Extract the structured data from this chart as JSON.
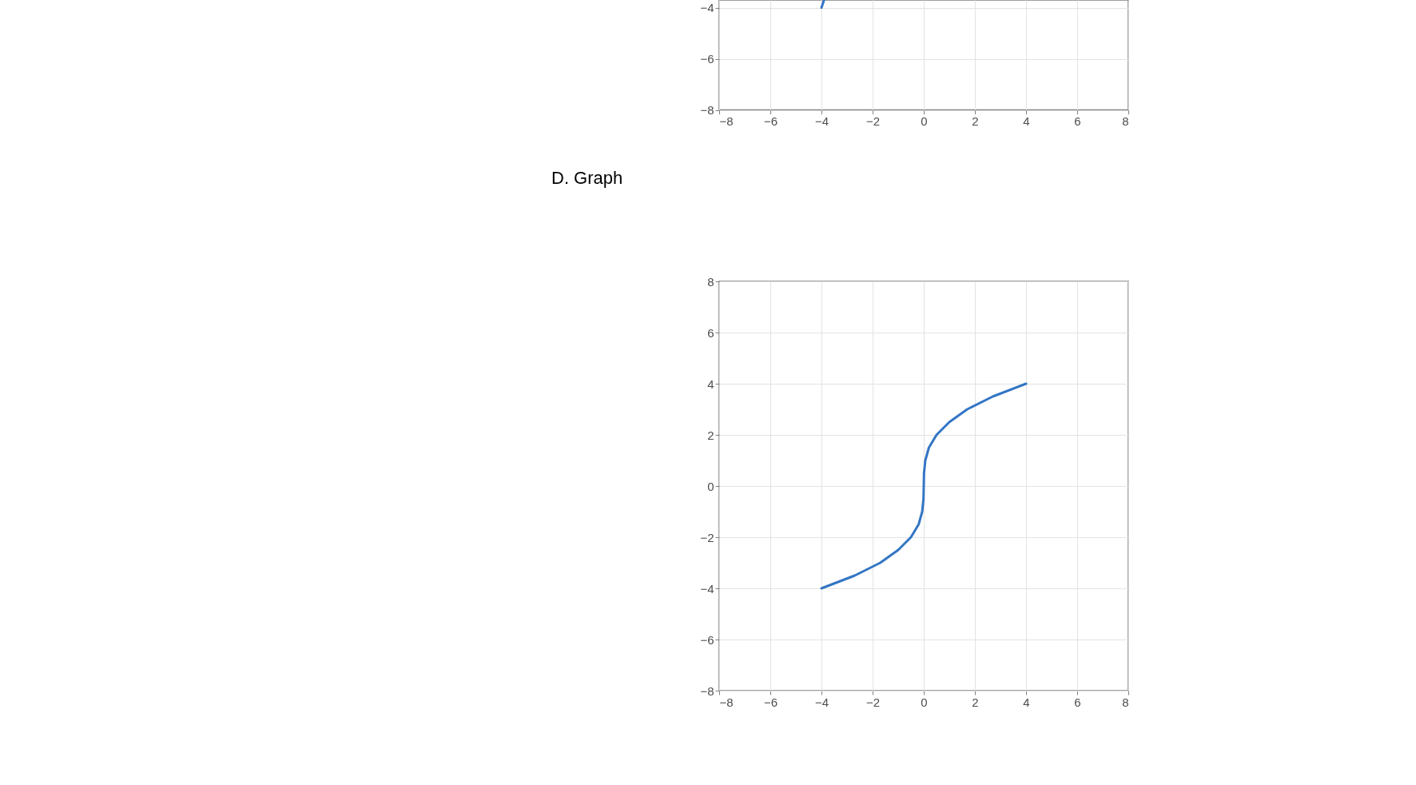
{
  "chart_data": [
    {
      "type": "line",
      "xlim": [
        -8,
        8
      ],
      "ylim": [
        -8,
        -3.7
      ],
      "xticks": [
        -8,
        -6,
        -4,
        -2,
        0,
        2,
        4,
        6,
        8
      ],
      "yticks": [
        -8,
        -6,
        -4
      ],
      "grid": true,
      "series": [
        {
          "color": "#3375c4",
          "x": [
            -4,
            -3.9
          ],
          "values": [
            -4,
            -3.7
          ]
        }
      ]
    },
    {
      "type": "line",
      "title": "D. Graph",
      "xlim": [
        -8,
        8
      ],
      "ylim": [
        -8,
        8
      ],
      "xticks": [
        -8,
        -6,
        -4,
        -2,
        0,
        2,
        4,
        6,
        8
      ],
      "yticks": [
        -8,
        -6,
        -4,
        -2,
        0,
        2,
        4,
        6,
        8
      ],
      "grid": true,
      "series": [
        {
          "color": "#3375c4",
          "x": [
            -4,
            -2.7,
            -1.7,
            -1,
            -0.5,
            -0.2,
            -0.06,
            -0.01,
            0,
            0.01,
            0.06,
            0.2,
            0.5,
            1,
            1.7,
            2.7,
            4
          ],
          "values": [
            -4,
            -3.5,
            -3,
            -2.5,
            -2,
            -1.5,
            -1,
            -0.5,
            0,
            0.5,
            1,
            1.5,
            2,
            2.5,
            3,
            3.5,
            4
          ]
        }
      ]
    }
  ]
}
